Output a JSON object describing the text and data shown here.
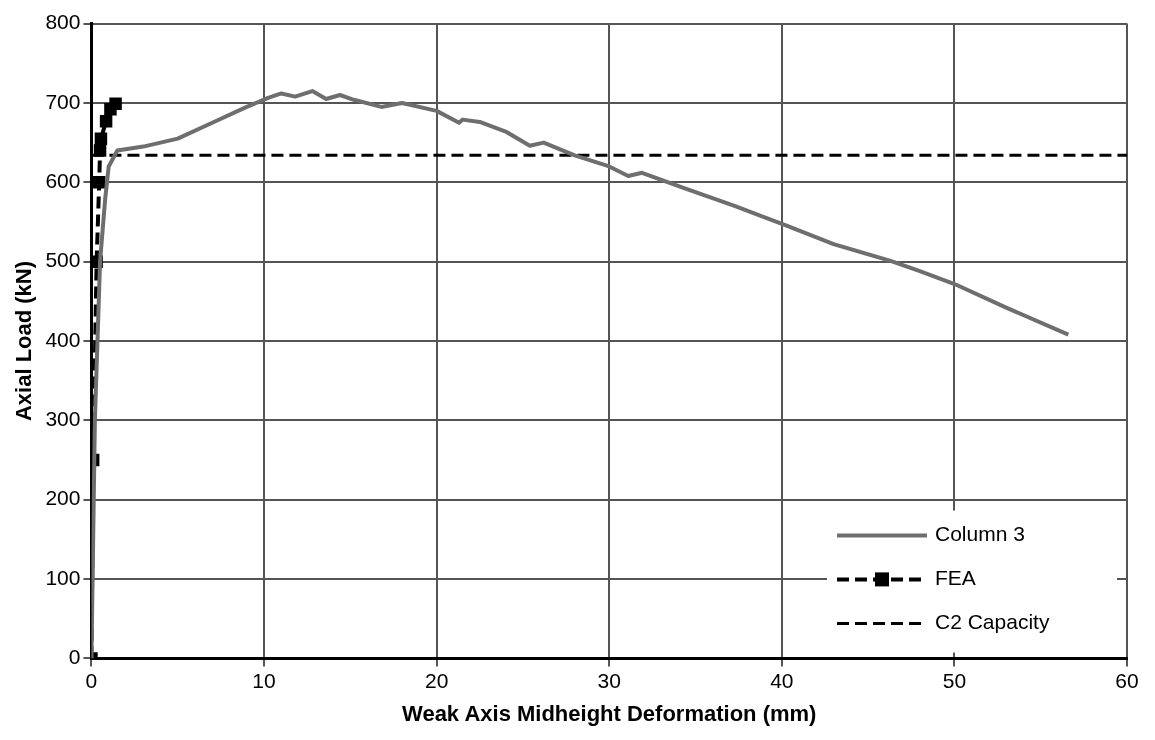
{
  "chart_data": {
    "type": "line",
    "xlabel": "Weak Axis Midheight Deformation (mm)",
    "ylabel": "Axial Load (kN)",
    "xlim": [
      0,
      60
    ],
    "xticks": [
      0,
      10,
      20,
      30,
      40,
      50,
      60
    ],
    "ylim": [
      0,
      800
    ],
    "yticks": [
      0,
      100,
      200,
      300,
      400,
      500,
      600,
      700,
      800
    ],
    "grid": true,
    "legend": "bottom right",
    "series": [
      {
        "name": "Column 3",
        "color": "#6e6e6e",
        "marker": "none",
        "line_style": "solid",
        "x": [
          0,
          0.2,
          0.5,
          0.8,
          1,
          1.5,
          3,
          5,
          7,
          9,
          10.2,
          11,
          11.8,
          12.8,
          13.6,
          14.4,
          15.2,
          16.8,
          18,
          20,
          21.3,
          21.5,
          22.5,
          24,
          25.4,
          26.2,
          28,
          30,
          31.1,
          31.9,
          34.3,
          37.3,
          40.2,
          43,
          46.3,
          48,
          50.2,
          53,
          56.6
        ],
        "values": [
          0,
          300,
          500,
          580,
          620,
          640,
          645,
          655,
          675,
          695,
          706,
          712,
          708,
          715,
          705,
          710,
          704,
          695,
          700,
          690,
          675,
          679,
          676,
          664,
          646,
          650,
          634,
          620,
          608,
          612,
          593,
          570,
          546,
          522,
          501,
          488,
          470,
          442,
          408
        ]
      },
      {
        "name": "FEA",
        "color": "#000000",
        "marker": "square",
        "line_style": "dashed",
        "x": [
          0,
          0.1,
          0.3,
          0.45,
          0.5,
          0.55,
          0.85,
          1.1,
          1.4
        ],
        "values": [
          0,
          250,
          500,
          600,
          640,
          655,
          677,
          692,
          699
        ]
      }
    ],
    "ref_lines": [
      {
        "axis": "y",
        "value": 634,
        "label": "C2 Capacity",
        "color": "#000000",
        "line_style": "dashed"
      }
    ]
  }
}
